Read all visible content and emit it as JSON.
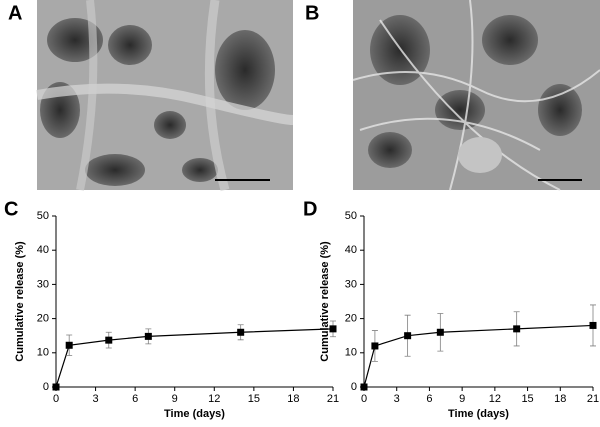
{
  "panel_labels": [
    "A",
    "B",
    "C",
    "D"
  ],
  "chart_data": [
    {
      "type": "line",
      "xlabel": "Time (days)",
      "ylabel": "Cumulative release (%)",
      "x": [
        0,
        1,
        4,
        7,
        14,
        21
      ],
      "values": [
        0,
        12.2,
        13.7,
        14.8,
        16,
        17
      ],
      "errors": [
        0,
        3,
        2.3,
        2.2,
        2.2,
        2.3
      ],
      "color": "#000000",
      "error_color": "#808080",
      "xlim": [
        0,
        21
      ],
      "xticks": [
        0,
        3,
        6,
        9,
        12,
        15,
        18,
        21
      ],
      "ylim": [
        0,
        50
      ],
      "yticks": [
        0,
        10,
        20,
        30,
        40,
        50
      ]
    },
    {
      "type": "line",
      "xlabel": "Time (days)",
      "ylabel": "Cumulative release (%)",
      "x": [
        0,
        1,
        4,
        7,
        14,
        21
      ],
      "values": [
        0,
        12,
        15,
        16,
        17,
        18
      ],
      "errors": [
        0,
        4.5,
        6,
        5.5,
        5,
        6
      ],
      "color": "#000000",
      "error_color": "#808080",
      "xlim": [
        0,
        21
      ],
      "xticks": [
        0,
        3,
        6,
        9,
        12,
        15,
        18,
        21
      ],
      "ylim": [
        0,
        50
      ],
      "yticks": [
        0,
        10,
        20,
        30,
        40,
        50
      ]
    }
  ]
}
